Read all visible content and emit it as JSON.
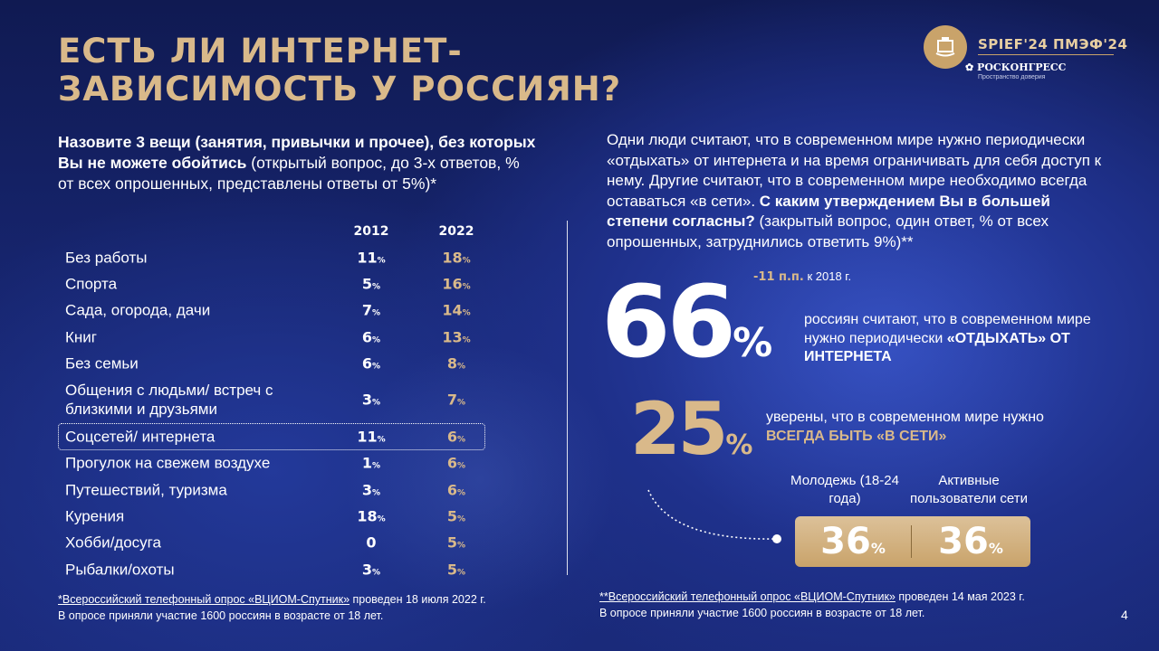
{
  "title": {
    "line1": "ЕСТЬ ЛИ ИНТЕРНЕТ-",
    "line2": "ЗАВИСИМОСТЬ У РОССИЯН?"
  },
  "logo": {
    "spief": "SPIEF'24 ПМЭФ'24",
    "roscongress": "РОСКОНГРЕСС",
    "roscongress_sub": "Пространство доверия"
  },
  "left_question": {
    "bold": "Назовите 3 вещи (занятия, привычки и прочее), без которых Вы не можете обойтись",
    "normal": " (открытый вопрос, до 3-х ответов, % от всех опрошенных, представлены ответы от 5%)*"
  },
  "table": {
    "headers": [
      "2012",
      "2022"
    ],
    "rows": [
      {
        "label": "Без работы",
        "v2012": "11",
        "v2022": "18"
      },
      {
        "label": "Спорта",
        "v2012": "5",
        "v2022": "16"
      },
      {
        "label": "Сада, огорода, дачи",
        "v2012": "7",
        "v2022": "14"
      },
      {
        "label": "Книг",
        "v2012": "6",
        "v2022": "13"
      },
      {
        "label": "Без семьи",
        "v2012": "6",
        "v2022": "8"
      },
      {
        "label": "Общения с людьми/ встреч с близкими и друзьями",
        "v2012": "3",
        "v2022": "7"
      },
      {
        "label": "Соцсетей/ интернета",
        "v2012": "11",
        "v2022": "6"
      },
      {
        "label": "Прогулок на свежем воздухе",
        "v2012": "1",
        "v2022": "6"
      },
      {
        "label": "Путешествий, туризма",
        "v2012": "3",
        "v2022": "6"
      },
      {
        "label": "Курения",
        "v2012": "18",
        "v2022": "5"
      },
      {
        "label": "Хобби/досуга",
        "v2012": "0",
        "v2022": "5"
      },
      {
        "label": "Рыбалки/охоты",
        "v2012": "3",
        "v2022": "5"
      }
    ],
    "percent": "%"
  },
  "footnote_left": {
    "link": "*Всероссийский телефонный опрос «ВЦИОМ-Спутник»",
    "rest": " проведен 18 июля 2022 г.",
    "line2": "В опросе приняли участие 1600 россиян в возрасте от 18 лет."
  },
  "right_question": {
    "normal": "Одни люди считают, что в современном мире нужно периодически «отдыхать» от интернета и на время ограничивать для себя доступ к нему. Другие считают, что в современном мире необходимо всегда оставаться «в сети». ",
    "bold": "С каким утверждением Вы в большей степени согласны?",
    "tail": " (закрытый вопрос, один ответ, % от всех опрошенных, затруднились ответить 9%)**"
  },
  "stat66": {
    "value": "66",
    "pct": "%",
    "change_acc": "-11 п.п.",
    "change_rest": " к 2018 г.",
    "text": "россиян считают, что в современном мире нужно периодически ",
    "caps": "«ОТДЫХАТЬ» ОТ ИНТЕРНЕТА"
  },
  "stat25": {
    "value": "25",
    "pct": "%",
    "text": "уверены, что в современном мире нужно ",
    "caps": "ВСЕГДА БЫТЬ «В СЕТИ»"
  },
  "segments": {
    "youth_label": "Молодежь (18-24 года)",
    "youth_value": "36",
    "active_label": "Активные пользователи сети",
    "active_value": "36",
    "pct": "%"
  },
  "footnote_right": {
    "link": "**Всероссийский телефонный опрос «ВЦИОМ-Спутник»",
    "rest": " проведен 14 мая 2023 г.",
    "line2": "В опросе приняли участие 1600 россиян в возрасте от 18 лет."
  },
  "page_number": "4",
  "colors": {
    "accent_gold": "#d9b98a",
    "background": "#1a2a7a",
    "text": "#ffffff"
  }
}
